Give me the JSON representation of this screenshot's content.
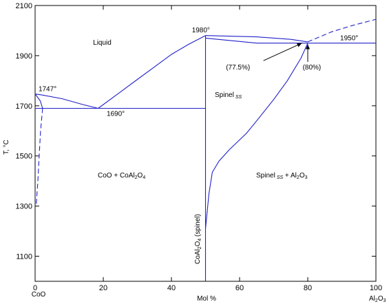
{
  "colors": {
    "axis": "#000000",
    "curve": "#2020c8",
    "arrow": "#000000",
    "background": "#ffffff"
  },
  "chart_data": {
    "type": "line",
    "title": "",
    "xlabel": "Mol %",
    "ylabel": "T, °C",
    "xlim": [
      0,
      100
    ],
    "ylim": [
      1000,
      2100
    ],
    "xticks": [
      0,
      20,
      40,
      60,
      80,
      100
    ],
    "yticks": [
      1100,
      1300,
      1500,
      1700,
      1900,
      2100
    ],
    "x_end_labels": {
      "left": "CoO",
      "right": "Al",
      "right_sub1": "2",
      "right_mid": "O",
      "right_sub2": "3"
    },
    "grid": false,
    "series": [
      {
        "style": "solid",
        "points": [
          [
            0,
            1747
          ],
          [
            2,
            1743
          ],
          [
            8,
            1728
          ],
          [
            14,
            1705
          ],
          [
            18.5,
            1690
          ]
        ]
      },
      {
        "style": "solid",
        "points": [
          [
            18.5,
            1690
          ],
          [
            25,
            1755
          ],
          [
            30,
            1805
          ],
          [
            35,
            1855
          ],
          [
            40,
            1905
          ],
          [
            45,
            1945
          ],
          [
            50,
            1980
          ]
        ]
      },
      {
        "style": "solid",
        "points": [
          [
            50,
            1980
          ],
          [
            65,
            1975
          ],
          [
            75,
            1965
          ],
          [
            80,
            1955
          ]
        ]
      },
      {
        "style": "solid",
        "points": [
          [
            50,
            1970
          ],
          [
            65,
            1950
          ],
          [
            80,
            1950
          ],
          [
            100,
            1950
          ]
        ]
      },
      {
        "style": "solid",
        "points": [
          [
            0,
            1690
          ],
          [
            50,
            1690
          ]
        ]
      },
      {
        "style": "solid",
        "points": [
          [
            50,
            1000
          ],
          [
            50,
            1980
          ]
        ]
      },
      {
        "style": "solid",
        "points": [
          [
            50,
            1210
          ],
          [
            51,
            1350
          ],
          [
            52,
            1435
          ],
          [
            54,
            1480
          ],
          [
            57,
            1525
          ],
          [
            62,
            1590
          ],
          [
            65,
            1640
          ],
          [
            70,
            1725
          ],
          [
            74,
            1800
          ],
          [
            78,
            1890
          ],
          [
            80,
            1950
          ]
        ]
      },
      {
        "style": "solid",
        "points": [
          [
            0,
            1747
          ],
          [
            1.5,
            1720
          ],
          [
            2.2,
            1690
          ]
        ]
      },
      {
        "style": "dashed",
        "points": [
          [
            2.2,
            1690
          ],
          [
            1.6,
            1600
          ],
          [
            1.2,
            1500
          ],
          [
            0.8,
            1400
          ],
          [
            0.3,
            1300
          ]
        ]
      },
      {
        "style": "dashed",
        "points": [
          [
            80,
            1955
          ],
          [
            87,
            1995
          ],
          [
            93,
            2020
          ],
          [
            100,
            2045
          ]
        ]
      }
    ],
    "annotations": [
      {
        "key": "liquid",
        "text": "Liquid",
        "x": 17,
        "y": 1943
      },
      {
        "key": "t1980",
        "text": "1980°",
        "x": 46,
        "y": 1993
      },
      {
        "key": "t1950",
        "text": "1950°",
        "x": 89.5,
        "y": 1962
      },
      {
        "key": "t1747",
        "text": "1747°",
        "x": 1,
        "y": 1758
      },
      {
        "key": "t1690",
        "text": "1690°",
        "x": 21,
        "y": 1660
      },
      {
        "key": "p775",
        "text": "(77.5%)",
        "x": 56,
        "y": 1845
      },
      {
        "key": "p80",
        "text": "(80%)",
        "x": 78.5,
        "y": 1845
      }
    ],
    "arrows": [
      {
        "from": [
          67,
          1880
        ],
        "to": [
          78.3,
          1950
        ]
      },
      {
        "from": [
          80,
          1875
        ],
        "to": [
          80,
          1945
        ]
      }
    ],
    "phase_labels": {
      "spinel_ss": {
        "text": "Spinel",
        "sub": "SS"
      },
      "two_phase": {
        "a": "CoO + CoAl",
        "a_sub1": "2",
        "a_mid": "O",
        "a_sub2": "4"
      },
      "spinel_al2o3": {
        "a": "Spinel",
        "a_sub": "SS",
        "b": " + Al",
        "b_sub1": "2",
        "b_mid": "O",
        "b_sub2": "3"
      },
      "vertical": {
        "a": "CoAl",
        "a_sub1": "2",
        "a_mid": "O",
        "a_sub2": "4",
        "b": " (spinel)"
      }
    }
  }
}
